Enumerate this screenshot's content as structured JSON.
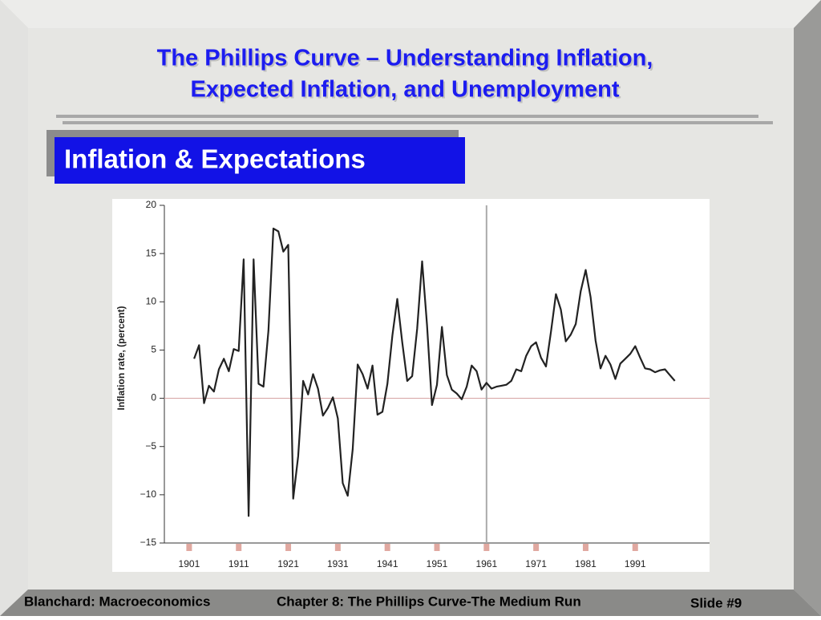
{
  "slide": {
    "title": [
      "The Phillips Curve – Understanding Inflation,",
      "Expected Inflation, and Unemployment"
    ],
    "section": "Inflation & Expectations",
    "footer": {
      "left": "Blanchard: Macroeconomics",
      "center": "Chapter 8: The Phillips Curve-The Medium Run",
      "right": "Slide #9"
    }
  },
  "chart_data": {
    "type": "line",
    "y_label": "Inflation rate, (percent)",
    "x": [
      1902,
      1903,
      1904,
      1905,
      1906,
      1907,
      1908,
      1909,
      1910,
      1911,
      1912,
      1913,
      1914,
      1915,
      1916,
      1917,
      1918,
      1919,
      1920,
      1921,
      1922,
      1923,
      1924,
      1925,
      1926,
      1927,
      1928,
      1929,
      1930,
      1931,
      1932,
      1933,
      1934,
      1935,
      1936,
      1937,
      1938,
      1939,
      1940,
      1941,
      1942,
      1943,
      1944,
      1945,
      1946,
      1947,
      1948,
      1949,
      1950,
      1951,
      1952,
      1953,
      1954,
      1955,
      1956,
      1957,
      1958,
      1959,
      1960,
      1961,
      1962,
      1963,
      1964,
      1965,
      1966,
      1967,
      1968,
      1969,
      1970,
      1971,
      1972,
      1973,
      1974,
      1975,
      1976,
      1977,
      1978,
      1979,
      1980,
      1981,
      1982,
      1983,
      1984,
      1985,
      1986,
      1987,
      1988,
      1989,
      1990,
      1991,
      1992,
      1993,
      1994,
      1995,
      1996,
      1997,
      1998,
      1999
    ],
    "series": [
      {
        "color": "#222222",
        "values": [
          4.1,
          5.5,
          -0.5,
          1.3,
          0.7,
          3.0,
          4.1,
          2.8,
          5.1,
          4.9,
          14.4,
          -12.2,
          14.4,
          1.5,
          1.2,
          7.0,
          17.6,
          17.3,
          15.2,
          15.9,
          -10.4,
          -6.0,
          1.8,
          0.4,
          2.5,
          1.0,
          -1.8,
          -1.0,
          0.1,
          -2.1,
          -8.8,
          -10.1,
          -5.3,
          3.5,
          2.5,
          1.0,
          3.4,
          -1.7,
          -1.4,
          1.5,
          6.5,
          10.3,
          5.8,
          1.8,
          2.3,
          7.2,
          14.2,
          7.6,
          -0.7,
          1.4,
          7.4,
          2.4,
          0.9,
          0.5,
          -0.1,
          1.2,
          3.4,
          2.8,
          0.9,
          1.6,
          1.0,
          1.2,
          1.3,
          1.4,
          1.8,
          3.0,
          2.8,
          4.4,
          5.4,
          5.8,
          4.2,
          3.3,
          6.9,
          10.8,
          9.2,
          5.9,
          6.6,
          7.7,
          11.1,
          13.3,
          10.5,
          6.0,
          3.1,
          4.4,
          3.5,
          2.0,
          3.6,
          4.1,
          4.6,
          5.4,
          4.2,
          3.1,
          3.0,
          2.7,
          2.9,
          3.0,
          2.4,
          1.8
        ]
      }
    ],
    "xlim": [
      1896,
      2006
    ],
    "ylim": [
      -15,
      20
    ],
    "xticks": [
      1901,
      1911,
      1921,
      1931,
      1941,
      1951,
      1961,
      1971,
      1981,
      1991
    ],
    "yticks": [
      20,
      15,
      10,
      5,
      0,
      {
        "value": -5,
        "label": "−5"
      },
      {
        "value": -10,
        "label": "−10"
      },
      {
        "value": -15,
        "label": "−15"
      }
    ],
    "vline": 1961
  }
}
